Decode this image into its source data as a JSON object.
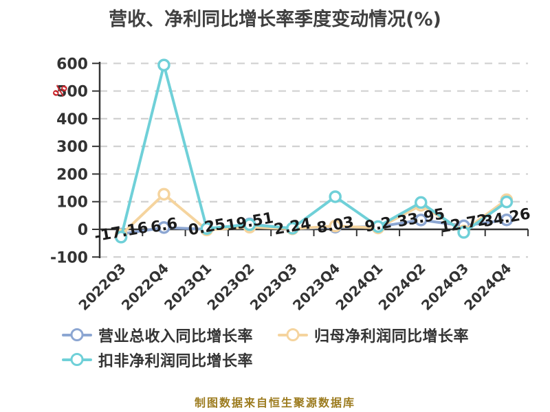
{
  "title": "营收、净利同比增长率季度变动情况(%)",
  "footer": "制图数据来自恒生聚源数据库",
  "legend": {
    "items": [
      {
        "label": "营业总收入同比增长率",
        "color": "#8ca6d2"
      },
      {
        "label": "归母净利润同比增长率",
        "color": "#f5d49e"
      },
      {
        "label": "扣非净利润同比增长率",
        "color": "#6fd0d8"
      }
    ]
  },
  "chart_data": {
    "type": "line",
    "title": "营收、净利同比增长率季度变动情况(%)",
    "unit_label": "%",
    "categories": [
      "2022Q3",
      "2022Q4",
      "2023Q1",
      "2023Q2",
      "2023Q3",
      "2023Q4",
      "2024Q1",
      "2024Q2",
      "2024Q3",
      "2024Q4"
    ],
    "series": [
      {
        "name": "营业总收入同比增长率",
        "color": "#8ca6d2",
        "labels_shown": true,
        "values": [
          -17.16,
          6.6,
          0.25,
          19.51,
          2.24,
          8.03,
          9.2,
          33.95,
          12.72,
          34.26
        ]
      },
      {
        "name": "归母净利润同比增长率",
        "color": "#f5d49e",
        "labels_shown": false,
        "values": [
          -20,
          127,
          -2,
          8,
          2,
          12,
          5,
          87,
          -6,
          107
        ]
      },
      {
        "name": "扣非净利润同比增长率",
        "color": "#6fd0d8",
        "labels_shown": false,
        "values": [
          -28,
          594,
          3,
          17,
          4,
          118,
          10,
          97,
          -11,
          99
        ]
      }
    ],
    "ylim": [
      -100,
      600
    ],
    "y_interval": 100,
    "y_ticks": [
      600,
      500,
      400,
      300,
      200,
      100,
      0,
      -100
    ],
    "grid": "horizontal-dashed",
    "legend_position": "bottom-left",
    "x_label_rotation": 45
  },
  "colors": {
    "background": "#ffffff",
    "grid": "#d0d0d0",
    "axis": "#333333",
    "tick_label": "#333333",
    "data_label": "#1b1b1b",
    "title": "#404040",
    "unit": "#c9252b",
    "footer": "#9c7b1e"
  }
}
